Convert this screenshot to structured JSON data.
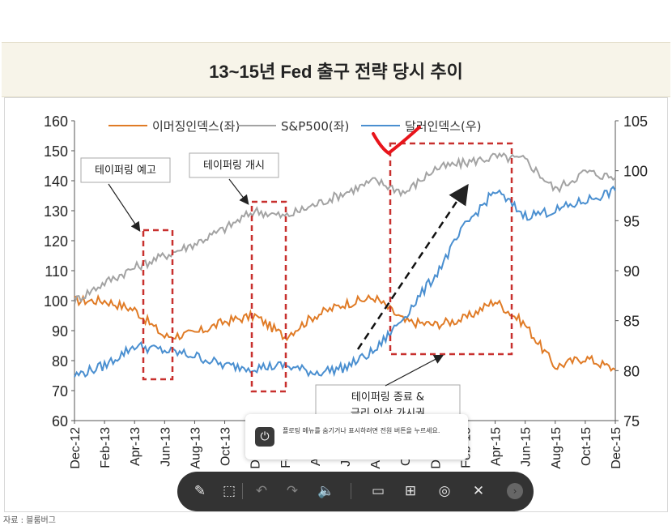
{
  "title": "13~15년 Fed 출구 전략 당시 추이",
  "source": "자료 : 블룸버그",
  "colors": {
    "emerging": "#e07b26",
    "sp500": "#a3a3a3",
    "dollar": "#4a8fd0",
    "box": "#c8302e",
    "marker": "#e8141b"
  },
  "chart_data": {
    "type": "line",
    "x": [
      "Dec-12",
      "Feb-13",
      "Apr-13",
      "Jun-13",
      "Aug-13",
      "Oct-13",
      "Dec-13",
      "Feb-14",
      "Apr-14",
      "Jun-14",
      "Aug-14",
      "Oct-14",
      "Dec-14",
      "Feb-15",
      "Apr-15",
      "Jun-15",
      "Aug-15",
      "Oct-15",
      "Dec-15"
    ],
    "ylim_left": [
      60,
      160
    ],
    "ylim_right": [
      75,
      105
    ],
    "yticks_left": [
      "160",
      "150",
      "140",
      "130",
      "120",
      "110",
      "100",
      "90",
      "80",
      "70",
      "60"
    ],
    "yticks_right": [
      "105",
      "100",
      "95",
      "90",
      "85",
      "80",
      "75"
    ],
    "series": [
      {
        "name": "이머징인덱스(좌)",
        "axis": "left",
        "values": [
          100,
          100,
          97,
          88,
          89,
          93,
          95,
          88,
          95,
          99,
          101,
          93,
          92,
          94,
          100,
          92,
          78,
          81,
          77
        ]
      },
      {
        "name": "S&P500(좌)",
        "axis": "left",
        "values": [
          100,
          106,
          111,
          115,
          119,
          124,
          130,
          128,
          132,
          136,
          140,
          136,
          144,
          146,
          148,
          147,
          137,
          143,
          141
        ]
      },
      {
        "name": "달러인덱스(우)",
        "axis": "right",
        "values": [
          79.5,
          80.5,
          82.5,
          82.0,
          81.5,
          80.5,
          80.3,
          80.5,
          79.8,
          80.3,
          82.0,
          85.5,
          89.5,
          94.5,
          98.0,
          95.5,
          96.0,
          97.0,
          98.0
        ]
      }
    ],
    "annotations": [
      {
        "label": "테이퍼링 예고"
      },
      {
        "label": "테이퍼링 개시"
      },
      {
        "label": "테이퍼링 종료 &",
        "label2": "금리 인상 가시권"
      }
    ]
  },
  "toast": {
    "icon": "power-icon",
    "text": "플로팅 메뉴를 숨기거나 표시하려면 전원 버튼을 누르세요."
  },
  "toolbar": {
    "buttons": [
      {
        "name": "edit-icon",
        "glyph": "✎"
      },
      {
        "name": "select-area-icon",
        "glyph": "⬚"
      },
      {
        "name": "undo-icon",
        "glyph": "↶"
      },
      {
        "name": "redo-icon",
        "glyph": "↷"
      },
      {
        "name": "volume-icon",
        "glyph": "🔈"
      },
      {
        "name": "capture-icon",
        "glyph": "▭"
      },
      {
        "name": "layout-icon",
        "glyph": "⊞"
      },
      {
        "name": "scroll-capture-icon",
        "glyph": "◎"
      },
      {
        "name": "close-icon",
        "glyph": "✕"
      }
    ]
  }
}
